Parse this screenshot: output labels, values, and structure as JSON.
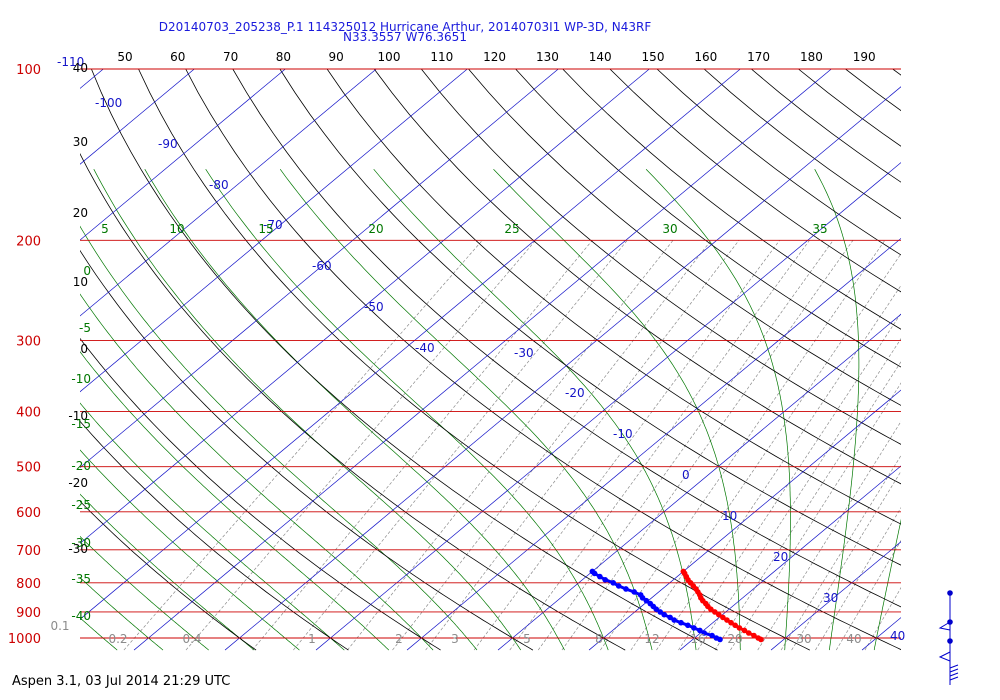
{
  "header": {
    "line1": "D20140703_205238_P.1 114325012 Hurricane Arthur, 20140703I1 WP-3D, N43RF",
    "line2": "N33.3557 W76.3651"
  },
  "footer": {
    "text": "Aspen 3.1, 03 Jul 2014  21:29 UTC"
  },
  "colors": {
    "isobar": "#cc0000",
    "isotherm": "#1414c8",
    "dry_adiabat": "#000000",
    "moist_adiabat": "#007700",
    "mixing_ratio": "#8c8c8c",
    "temperature": "#ff0000",
    "dewpoint": "#0000ff",
    "wind_barb": "#0000cc"
  },
  "chart_data": {
    "type": "skew-t log-p",
    "pressure_range_hpa": [
      1000,
      100
    ],
    "isobar_labels": [
      "100",
      "200",
      "300",
      "400",
      "500",
      "600",
      "700",
      "800",
      "900",
      "1000"
    ],
    "isotherm_labels": [
      "-110",
      "-100",
      "-90",
      "-80",
      "-70",
      "-60",
      "-50",
      "-40",
      "-30",
      "-20",
      "-10",
      "0",
      "10",
      "20",
      "30",
      "40"
    ],
    "top_labels": [
      "50",
      "60",
      "70",
      "80",
      "90",
      "100",
      "110",
      "120",
      "130",
      "140",
      "150",
      "160",
      "170",
      "180",
      "190"
    ],
    "left_black_labels": [
      "40",
      "30",
      "20",
      "10",
      "0",
      "-10",
      "-20",
      "-30"
    ],
    "green_top_labels": [
      "5",
      "10",
      "15",
      "20",
      "25",
      "30",
      "35"
    ],
    "green_left_labels": [
      "0",
      "-5",
      "-10",
      "-15",
      "-20",
      "-25",
      "-30",
      "-35",
      "-40"
    ],
    "mixing_ratio_labels": [
      "0.1",
      "0.2",
      "0.4",
      "1",
      "2",
      "3",
      "5",
      "8",
      "12",
      "16",
      "20",
      "30",
      "40"
    ],
    "temperature_profile": [
      {
        "p": 1006,
        "t": 27.5
      },
      {
        "p": 1000,
        "t": 27.0
      },
      {
        "p": 990,
        "t": 26.2
      },
      {
        "p": 980,
        "t": 25.3
      },
      {
        "p": 970,
        "t": 24.5
      },
      {
        "p": 960,
        "t": 23.6
      },
      {
        "p": 950,
        "t": 22.8
      },
      {
        "p": 940,
        "t": 22.0
      },
      {
        "p": 930,
        "t": 21.2
      },
      {
        "p": 920,
        "t": 20.4
      },
      {
        "p": 910,
        "t": 19.6
      },
      {
        "p": 900,
        "t": 18.8
      },
      {
        "p": 890,
        "t": 18.0
      },
      {
        "p": 880,
        "t": 17.3
      },
      {
        "p": 870,
        "t": 16.7
      },
      {
        "p": 860,
        "t": 16.0
      },
      {
        "p": 850,
        "t": 15.4
      },
      {
        "p": 840,
        "t": 14.9
      },
      {
        "p": 830,
        "t": 14.3
      },
      {
        "p": 820,
        "t": 13.7
      },
      {
        "p": 810,
        "t": 13.0
      },
      {
        "p": 800,
        "t": 12.3
      },
      {
        "p": 790,
        "t": 11.6
      },
      {
        "p": 780,
        "t": 11.0
      },
      {
        "p": 770,
        "t": 10.4
      },
      {
        "p": 764,
        "t": 10.0
      }
    ],
    "dewpoint_profile": [
      {
        "p": 1006,
        "td": 23.0
      },
      {
        "p": 1000,
        "td": 22.4
      },
      {
        "p": 990,
        "td": 21.6
      },
      {
        "p": 980,
        "td": 20.4
      },
      {
        "p": 970,
        "td": 19.6
      },
      {
        "p": 960,
        "td": 18.6
      },
      {
        "p": 950,
        "td": 17.6
      },
      {
        "p": 940,
        "td": 16.5
      },
      {
        "p": 930,
        "td": 15.4
      },
      {
        "p": 920,
        "td": 14.6
      },
      {
        "p": 910,
        "td": 13.6
      },
      {
        "p": 900,
        "td": 12.8
      },
      {
        "p": 890,
        "td": 12.0
      },
      {
        "p": 880,
        "td": 11.3
      },
      {
        "p": 870,
        "td": 10.6
      },
      {
        "p": 860,
        "td": 9.8
      },
      {
        "p": 850,
        "td": 9.0
      },
      {
        "p": 840,
        "td": 8.4
      },
      {
        "p": 830,
        "td": 7.3
      },
      {
        "p": 820,
        "td": 6.0
      },
      {
        "p": 810,
        "td": 4.8
      },
      {
        "p": 800,
        "td": 3.8
      },
      {
        "p": 790,
        "td": 2.5
      },
      {
        "p": 780,
        "td": 1.5
      },
      {
        "p": 770,
        "td": 0.5
      },
      {
        "p": 764,
        "td": 0.0
      }
    ],
    "wind_profile": [
      {
        "p": 1000,
        "dir": 180,
        "spd": 15
      },
      {
        "p": 960,
        "dir": 190,
        "spd": 25
      },
      {
        "p": 900,
        "dir": 210,
        "spd": 30
      },
      {
        "p": 800,
        "dir": 220,
        "spd": 40
      }
    ]
  }
}
